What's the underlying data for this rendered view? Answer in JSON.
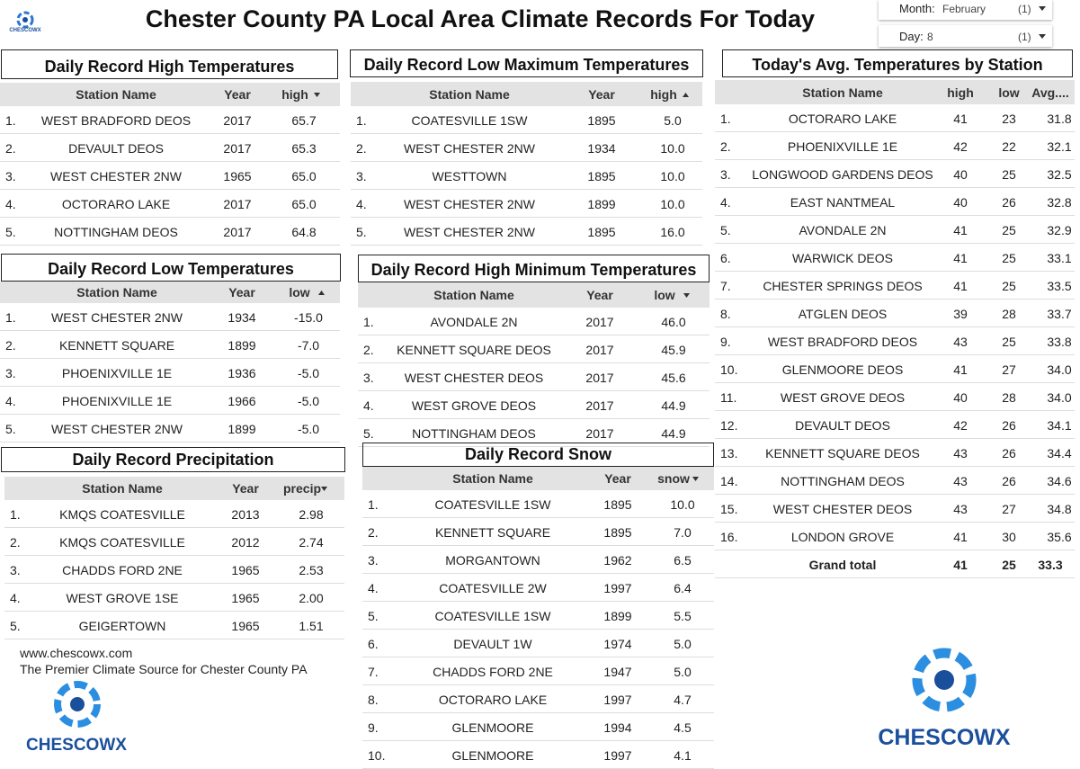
{
  "header": {
    "title": "Chester County PA Local Area Climate Records For Today",
    "logo": "CHESCOWX",
    "month_label": "Month:",
    "month_value": "February",
    "month_count": "(1)",
    "day_label": "Day:",
    "day_value": "8",
    "day_count": "(1)"
  },
  "tables": [
    {
      "title": "Daily Record High Temperatures",
      "columns": [
        "Station Name",
        "Year",
        "high"
      ],
      "rows": [
        [
          "1.",
          "WEST BRADFORD DEOS",
          "2017",
          "65.7"
        ],
        [
          "2.",
          "DEVAULT DEOS",
          "2017",
          "65.3"
        ],
        [
          "3.",
          "WEST CHESTER 2NW",
          "1965",
          "65.0"
        ],
        [
          "4.",
          "OCTORARO LAKE",
          "2017",
          "65.0"
        ],
        [
          "5.",
          "NOTTINGHAM DEOS",
          "2017",
          "64.8"
        ]
      ]
    },
    {
      "title": "Daily Record Low Temperatures",
      "columns": [
        "Station Name",
        "Year",
        "low"
      ],
      "rows": [
        [
          "1.",
          "WEST CHESTER 2NW",
          "1934",
          "-15.0"
        ],
        [
          "2.",
          "KENNETT SQUARE",
          "1899",
          "-7.0"
        ],
        [
          "3.",
          "PHOENIXVILLE 1E",
          "1936",
          "-5.0"
        ],
        [
          "4.",
          "PHOENIXVILLE 1E",
          "1966",
          "-5.0"
        ],
        [
          "5.",
          "WEST CHESTER 2NW",
          "1899",
          "-5.0"
        ]
      ]
    },
    {
      "title": "Daily Record Precipitation",
      "columns": [
        "Station Name",
        "Year",
        "precip"
      ],
      "rows": [
        [
          "1.",
          "KMQS COATESVILLE",
          "2013",
          "2.98"
        ],
        [
          "2.",
          "KMQS COATESVILLE",
          "2012",
          "2.74"
        ],
        [
          "3.",
          "CHADDS FORD 2NE",
          "1965",
          "2.53"
        ],
        [
          "4.",
          "WEST GROVE 1SE",
          "1965",
          "2.00"
        ],
        [
          "5.",
          "GEIGERTOWN",
          "1965",
          "1.51"
        ]
      ]
    },
    {
      "title": "Daily Record Low Maximum Temperatures",
      "columns": [
        "Station Name",
        "Year",
        "high"
      ],
      "rows": [
        [
          "1.",
          "COATESVILLE 1SW",
          "1895",
          "5.0"
        ],
        [
          "2.",
          "WEST CHESTER 2NW",
          "1934",
          "10.0"
        ],
        [
          "3.",
          "WESTTOWN",
          "1895",
          "10.0"
        ],
        [
          "4.",
          "WEST CHESTER 2NW",
          "1899",
          "10.0"
        ],
        [
          "5.",
          "WEST CHESTER 2NW",
          "1895",
          "16.0"
        ]
      ]
    },
    {
      "title": "Daily Record High Minimum Temperatures",
      "columns": [
        "Station Name",
        "Year",
        "low"
      ],
      "rows": [
        [
          "1.",
          "AVONDALE 2N",
          "2017",
          "46.0"
        ],
        [
          "2.",
          "KENNETT SQUARE DEOS",
          "2017",
          "45.9"
        ],
        [
          "3.",
          "WEST CHESTER DEOS",
          "2017",
          "45.6"
        ],
        [
          "4.",
          "WEST GROVE DEOS",
          "2017",
          "44.9"
        ],
        [
          "5.",
          "NOTTINGHAM DEOS",
          "2017",
          "44.9"
        ]
      ]
    },
    {
      "title": "Daily Record Snow",
      "columns": [
        "Station Name",
        "Year",
        "snow"
      ],
      "rows": [
        [
          "1.",
          "COATESVILLE 1SW",
          "1895",
          "10.0"
        ],
        [
          "2.",
          "KENNETT SQUARE",
          "1895",
          "7.0"
        ],
        [
          "3.",
          "MORGANTOWN",
          "1962",
          "6.5"
        ],
        [
          "4.",
          "COATESVILLE 2W",
          "1997",
          "6.4"
        ],
        [
          "5.",
          "COATESVILLE 1SW",
          "1899",
          "5.5"
        ],
        [
          "6.",
          "DEVAULT 1W",
          "1974",
          "5.0"
        ],
        [
          "7.",
          "CHADDS FORD 2NE",
          "1947",
          "5.0"
        ],
        [
          "8.",
          "OCTORARO LAKE",
          "1997",
          "4.7"
        ],
        [
          "9.",
          "GLENMOORE",
          "1994",
          "4.5"
        ],
        [
          "10.",
          "GLENMOORE",
          "1997",
          "4.1"
        ]
      ]
    },
    {
      "title": "Today's Avg. Temperatures by Station",
      "columns": [
        "Station Name",
        "high",
        "low",
        "Avg...."
      ],
      "rows": [
        [
          "1.",
          "OCTORARO LAKE",
          "41",
          "23",
          "31.8"
        ],
        [
          "2.",
          "PHOENIXVILLE 1E",
          "42",
          "22",
          "32.1"
        ],
        [
          "3.",
          "LONGWOOD GARDENS DEOS",
          "40",
          "25",
          "32.5"
        ],
        [
          "4.",
          "EAST NANTMEAL",
          "40",
          "26",
          "32.8"
        ],
        [
          "5.",
          "AVONDALE 2N",
          "41",
          "25",
          "32.9"
        ],
        [
          "6.",
          "WARWICK DEOS",
          "41",
          "25",
          "33.1"
        ],
        [
          "7.",
          "CHESTER SPRINGS DEOS",
          "41",
          "25",
          "33.5"
        ],
        [
          "8.",
          "ATGLEN DEOS",
          "39",
          "28",
          "33.7"
        ],
        [
          "9.",
          "WEST BRADFORD DEOS",
          "43",
          "25",
          "33.8"
        ],
        [
          "10.",
          "GLENMOORE DEOS",
          "41",
          "27",
          "34.0"
        ],
        [
          "11.",
          "WEST GROVE DEOS",
          "40",
          "28",
          "34.0"
        ],
        [
          "12.",
          "DEVAULT DEOS",
          "42",
          "26",
          "34.1"
        ],
        [
          "13.",
          "KENNETT SQUARE DEOS",
          "43",
          "26",
          "34.4"
        ],
        [
          "14.",
          "NOTTINGHAM DEOS",
          "43",
          "26",
          "34.6"
        ],
        [
          "15.",
          "WEST CHESTER DEOS",
          "43",
          "27",
          "34.8"
        ],
        [
          "16.",
          "LONDON GROVE",
          "41",
          "30",
          "35.6"
        ]
      ],
      "total": [
        "Grand total",
        "41",
        "25",
        "33.3"
      ]
    }
  ],
  "footer": {
    "website": "www.chescowx.com",
    "tagline": "The Premier Climate Source for Chester County PA",
    "logo": "CHESCOWX",
    "right_logo": "CHESCOWX"
  }
}
